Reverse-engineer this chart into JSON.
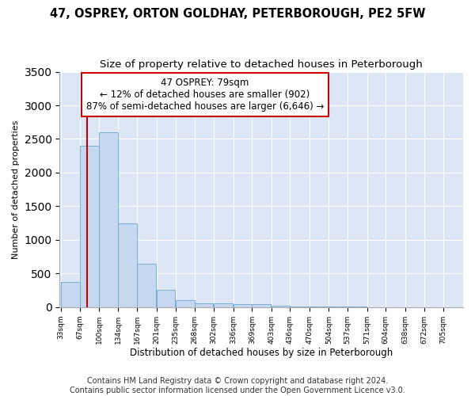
{
  "title1": "47, OSPREY, ORTON GOLDHAY, PETERBOROUGH, PE2 5FW",
  "title2": "Size of property relative to detached houses in Peterborough",
  "xlabel": "Distribution of detached houses by size in Peterborough",
  "ylabel": "Number of detached properties",
  "footnote": "Contains HM Land Registry data © Crown copyright and database right 2024.\nContains public sector information licensed under the Open Government Licence v3.0.",
  "bar_edges": [
    33,
    67,
    100,
    134,
    167,
    201,
    235,
    268,
    302,
    336,
    369,
    403,
    436,
    470,
    504,
    537,
    571,
    604,
    638,
    672,
    705
  ],
  "bar_heights": [
    380,
    2400,
    2600,
    1250,
    640,
    260,
    100,
    60,
    55,
    50,
    40,
    25,
    15,
    10,
    8,
    5,
    4,
    3,
    2,
    1
  ],
  "bar_color": "#c5d8f0",
  "bar_edge_color": "#7aaed6",
  "property_size": 79,
  "property_label": "47 OSPREY: 79sqm",
  "annotation_line1": "← 12% of detached houses are smaller (902)",
  "annotation_line2": "87% of semi-detached houses are larger (6,646) →",
  "red_line_color": "#cc0000",
  "annotation_box_color": "#cc0000",
  "ylim": [
    0,
    3500
  ],
  "yticks": [
    0,
    500,
    1000,
    1500,
    2000,
    2500,
    3000,
    3500
  ],
  "bg_color": "#dce6f5",
  "grid_color": "#ffffff",
  "title1_fontsize": 10.5,
  "title2_fontsize": 9.5,
  "footnote_fontsize": 7,
  "bin_width": 33
}
